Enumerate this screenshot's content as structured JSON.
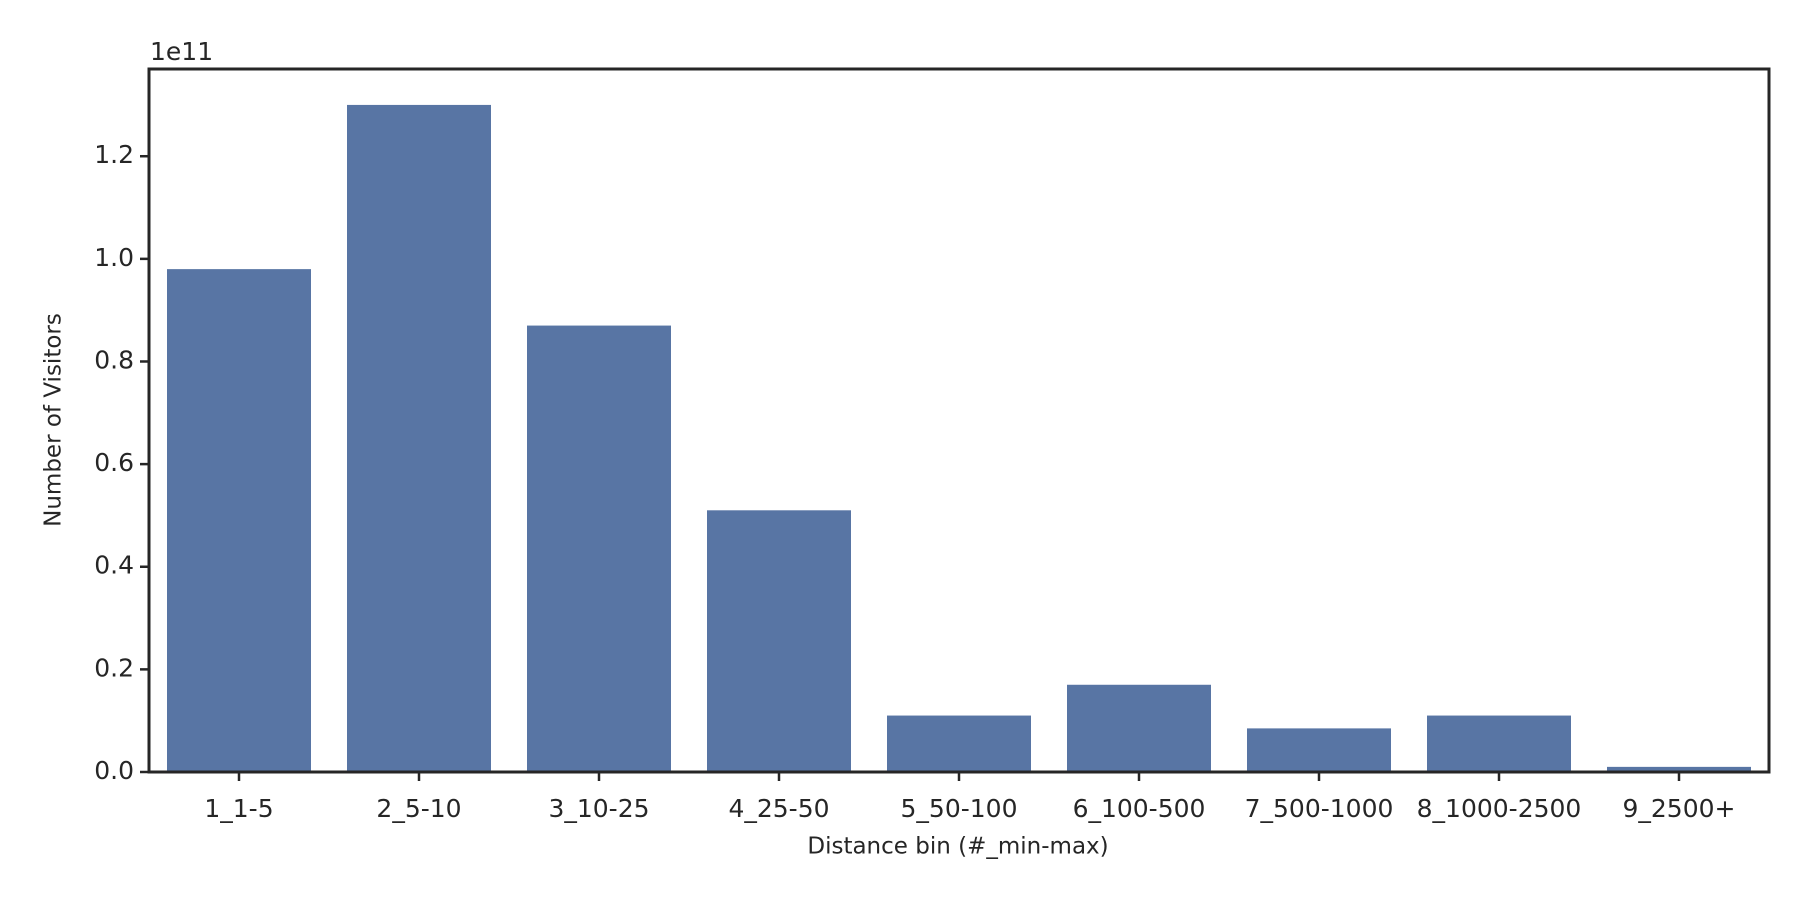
{
  "chart_data": {
    "type": "bar",
    "x_label": "Distance bin (#_min-max)",
    "y_label": "Number of Visitors",
    "y_offset_label": "1e11",
    "categories": [
      "1_1-5",
      "2_5-10",
      "3_10-25",
      "4_25-50",
      "5_50-100",
      "6_100-500",
      "7_500-1000",
      "8_1000-2500",
      "9_2500+"
    ],
    "values": [
      0.98,
      1.3,
      0.87,
      0.51,
      0.11,
      0.17,
      0.085,
      0.11,
      0.01
    ],
    "color": "#5875a4",
    "ylim": [
      0,
      1.37
    ],
    "yticks": [
      {
        "value": 0,
        "label": "0.0"
      },
      0.2,
      0.4,
      0.6,
      0.8,
      {
        "value": 1,
        "label": "1.0"
      },
      1.2
    ],
    "grid": false
  }
}
